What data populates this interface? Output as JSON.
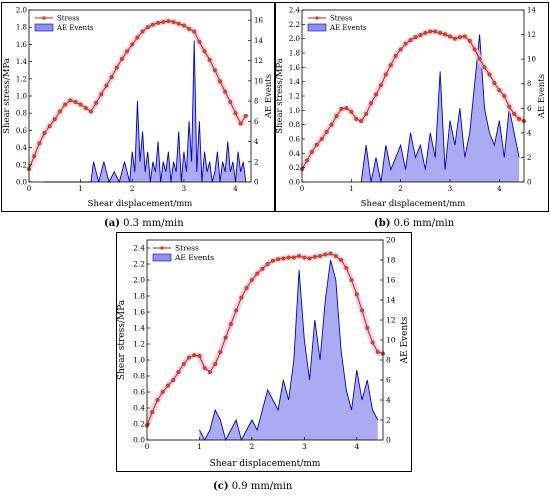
{
  "legend": {
    "stress": "Stress",
    "ae": "AE Events"
  },
  "captions": [
    {
      "tag": "(a)",
      "text": "0.3 mm/min"
    },
    {
      "tag": "(b)",
      "text": "0.6 mm/min"
    },
    {
      "tag": "(c)",
      "text": "0.9 mm/min"
    }
  ],
  "colors": {
    "stress_line": "#b22222",
    "stress_marker": "#e04a1a",
    "ae_fill": "#8f8ff0",
    "ae_line": "#0000cc",
    "halo": "#f7c6dd"
  },
  "chart_data": [
    {
      "type": "line",
      "title": "",
      "xlabel": "Shear displacement/mm",
      "ylabel": "Shear stress/MPa",
      "y2label": "AE Events",
      "xlim": [
        0,
        4.3
      ],
      "ylim": [
        0,
        2.0
      ],
      "y2lim": [
        0,
        17
      ],
      "xticks": [
        0,
        1,
        2,
        3,
        4
      ],
      "yticks": [
        0,
        0.2,
        0.4,
        0.6,
        0.8,
        1.0,
        1.2,
        1.4,
        1.6,
        1.8,
        2.0
      ],
      "y2ticks": [
        0,
        2,
        4,
        6,
        8,
        10,
        12,
        14,
        16
      ],
      "legend_position": "top-left",
      "series": [
        {
          "name": "Stress",
          "x": [
            0,
            0.1,
            0.2,
            0.3,
            0.4,
            0.5,
            0.6,
            0.7,
            0.8,
            0.9,
            1.0,
            1.1,
            1.2,
            1.3,
            1.4,
            1.5,
            1.6,
            1.7,
            1.8,
            1.9,
            2.0,
            2.1,
            2.2,
            2.3,
            2.4,
            2.5,
            2.6,
            2.7,
            2.8,
            2.9,
            3.0,
            3.1,
            3.2,
            3.3,
            3.4,
            3.5,
            3.6,
            3.7,
            3.8,
            3.9,
            4.0,
            4.1,
            4.2
          ],
          "y": [
            0.15,
            0.3,
            0.45,
            0.57,
            0.65,
            0.73,
            0.82,
            0.9,
            0.95,
            0.93,
            0.9,
            0.86,
            0.82,
            0.92,
            1.02,
            1.12,
            1.22,
            1.33,
            1.43,
            1.52,
            1.6,
            1.68,
            1.75,
            1.8,
            1.83,
            1.85,
            1.86,
            1.87,
            1.86,
            1.84,
            1.82,
            1.78,
            1.75,
            1.63,
            1.52,
            1.42,
            1.3,
            1.17,
            1.05,
            0.93,
            0.8,
            0.68,
            0.77
          ]
        },
        {
          "name": "AE Events",
          "x": [
            0.3,
            0.6,
            0.9,
            1.2,
            1.25,
            1.35,
            1.45,
            1.55,
            1.65,
            1.75,
            1.85,
            1.95,
            2.0,
            2.05,
            2.1,
            2.15,
            2.2,
            2.25,
            2.3,
            2.35,
            2.4,
            2.45,
            2.5,
            2.55,
            2.6,
            2.65,
            2.7,
            2.75,
            2.8,
            2.85,
            2.9,
            2.95,
            3.0,
            3.05,
            3.1,
            3.15,
            3.2,
            3.25,
            3.3,
            3.35,
            3.4,
            3.45,
            3.5,
            3.55,
            3.6,
            3.65,
            3.7,
            3.75,
            3.8,
            3.85,
            3.9,
            3.95,
            4.0,
            4.05,
            4.1,
            4.15,
            4.2
          ],
          "y": [
            0,
            0,
            0,
            0,
            2,
            0,
            2,
            0,
            1,
            0,
            2,
            0,
            3,
            1,
            8,
            2,
            5,
            1,
            3,
            0,
            2,
            1,
            4,
            0,
            2,
            1,
            3,
            0,
            2,
            1,
            5,
            0,
            3,
            1,
            6,
            2,
            14,
            1,
            6,
            0,
            3,
            1,
            2,
            0,
            1,
            3,
            0,
            2,
            1,
            4,
            1,
            2,
            0,
            3,
            1,
            2,
            0
          ]
        }
      ]
    },
    {
      "type": "line",
      "title": "",
      "xlabel": "Shear displacement/mm",
      "ylabel": "Shear stress/MPa",
      "y2label": "AE Events",
      "xlim": [
        0,
        4.5
      ],
      "ylim": [
        0,
        2.4
      ],
      "y2lim": [
        0,
        14
      ],
      "xticks": [
        0,
        1,
        2,
        3,
        4
      ],
      "yticks": [
        0,
        0.2,
        0.4,
        0.6,
        0.8,
        1.0,
        1.2,
        1.4,
        1.6,
        1.8,
        2.0,
        2.2,
        2.4
      ],
      "y2ticks": [
        0,
        2,
        4,
        6,
        8,
        10,
        12,
        14
      ],
      "legend_position": "top-left",
      "series": [
        {
          "name": "Stress",
          "x": [
            0,
            0.1,
            0.2,
            0.3,
            0.4,
            0.5,
            0.6,
            0.7,
            0.8,
            0.9,
            1.0,
            1.1,
            1.2,
            1.3,
            1.4,
            1.5,
            1.6,
            1.7,
            1.8,
            1.9,
            2.0,
            2.1,
            2.2,
            2.3,
            2.4,
            2.5,
            2.6,
            2.7,
            2.8,
            2.9,
            3.0,
            3.1,
            3.2,
            3.3,
            3.4,
            3.5,
            3.6,
            3.7,
            3.8,
            3.9,
            4.0,
            4.1,
            4.2,
            4.3,
            4.4,
            4.5
          ],
          "y": [
            0.18,
            0.3,
            0.42,
            0.52,
            0.6,
            0.7,
            0.8,
            0.92,
            1.02,
            1.03,
            0.98,
            0.88,
            0.85,
            0.95,
            1.1,
            1.22,
            1.35,
            1.5,
            1.63,
            1.76,
            1.85,
            1.93,
            1.98,
            2.02,
            2.05,
            2.08,
            2.1,
            2.1,
            2.08,
            2.06,
            2.03,
            2.0,
            2.02,
            2.03,
            1.97,
            1.85,
            1.72,
            1.6,
            1.5,
            1.38,
            1.28,
            1.2,
            1.05,
            0.95,
            0.88,
            0.85
          ]
        },
        {
          "name": "AE Events",
          "x": [
            1.2,
            1.3,
            1.4,
            1.5,
            1.6,
            1.7,
            1.8,
            1.9,
            2.0,
            2.1,
            2.2,
            2.3,
            2.4,
            2.5,
            2.6,
            2.7,
            2.8,
            2.9,
            3.0,
            3.1,
            3.2,
            3.3,
            3.4,
            3.5,
            3.6,
            3.7,
            3.8,
            3.9,
            4.0,
            4.1,
            4.2,
            4.3,
            4.4
          ],
          "y": [
            0,
            3,
            0,
            2,
            0,
            3,
            1,
            2,
            3,
            1,
            4,
            2,
            3,
            1,
            4,
            2,
            9,
            1,
            5,
            3,
            6,
            2,
            4,
            8,
            12,
            6,
            4,
            3,
            5,
            2,
            6,
            4,
            2
          ]
        }
      ]
    },
    {
      "type": "line",
      "title": "",
      "xlabel": "Shear displacement/mm",
      "ylabel": "Shear stress/MPa",
      "y2label": "AE Events",
      "xlim": [
        0,
        4.5
      ],
      "ylim": [
        0,
        2.5
      ],
      "y2lim": [
        0,
        20
      ],
      "xticks": [
        0,
        1,
        2,
        3,
        4
      ],
      "yticks": [
        0,
        0.2,
        0.4,
        0.6,
        0.8,
        1.0,
        1.2,
        1.4,
        1.6,
        1.8,
        2.0,
        2.2,
        2.4
      ],
      "y2ticks": [
        0,
        2,
        4,
        6,
        8,
        10,
        12,
        14,
        16,
        18,
        20
      ],
      "legend_position": "top-left",
      "series": [
        {
          "name": "Stress",
          "x": [
            0,
            0.1,
            0.2,
            0.3,
            0.4,
            0.5,
            0.6,
            0.7,
            0.8,
            0.9,
            1.0,
            1.1,
            1.2,
            1.3,
            1.4,
            1.5,
            1.6,
            1.7,
            1.8,
            1.9,
            2.0,
            2.1,
            2.2,
            2.3,
            2.4,
            2.5,
            2.6,
            2.7,
            2.8,
            2.9,
            3.0,
            3.1,
            3.2,
            3.3,
            3.4,
            3.5,
            3.6,
            3.7,
            3.8,
            3.9,
            4.0,
            4.1,
            4.2,
            4.3,
            4.4,
            4.5
          ],
          "y": [
            0.18,
            0.35,
            0.5,
            0.6,
            0.68,
            0.75,
            0.85,
            0.95,
            1.03,
            1.06,
            1.05,
            0.9,
            0.85,
            0.95,
            1.1,
            1.28,
            1.45,
            1.62,
            1.78,
            1.9,
            2.0,
            2.08,
            2.14,
            2.2,
            2.24,
            2.26,
            2.27,
            2.28,
            2.28,
            2.3,
            2.28,
            2.27,
            2.29,
            2.3,
            2.32,
            2.33,
            2.3,
            2.25,
            2.15,
            2.0,
            1.82,
            1.62,
            1.4,
            1.22,
            1.1,
            1.08
          ]
        },
        {
          "name": "AE Events",
          "x": [
            1.0,
            1.1,
            1.2,
            1.3,
            1.4,
            1.5,
            1.6,
            1.7,
            1.8,
            1.9,
            2.0,
            2.1,
            2.2,
            2.3,
            2.4,
            2.5,
            2.6,
            2.7,
            2.8,
            2.9,
            3.0,
            3.1,
            3.2,
            3.3,
            3.4,
            3.5,
            3.6,
            3.7,
            3.8,
            3.9,
            4.0,
            4.1,
            4.2,
            4.3,
            4.4
          ],
          "y": [
            1,
            0,
            1,
            3,
            2,
            0,
            1,
            2,
            0,
            1,
            2,
            1,
            3,
            5,
            4,
            3,
            6,
            4,
            8,
            17,
            10,
            6,
            12,
            8,
            14,
            18,
            16,
            9,
            5,
            3,
            7,
            4,
            6,
            3,
            2
          ]
        }
      ]
    }
  ]
}
